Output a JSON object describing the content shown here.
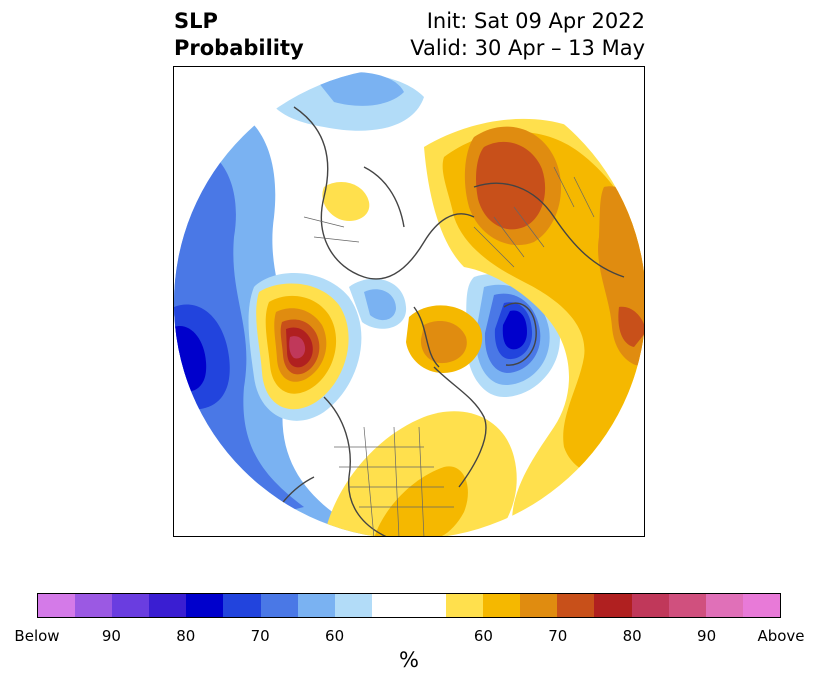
{
  "title": {
    "left": "SLP\nProbability",
    "right": "Init: Sat 09 Apr 2022\nValid: 30 Apr – 13 May"
  },
  "colorbar": {
    "colors": [
      "#d47ae8",
      "#9b59e3",
      "#6a3de0",
      "#3a1ed2",
      "#0000cc",
      "#2244dd",
      "#4a78e6",
      "#7ab2f2",
      "#b2dcf8",
      "#ffffff",
      "#ffffff",
      "#ffe04d",
      "#f5b800",
      "#e08c10",
      "#c8501a",
      "#b02020",
      "#c0385a",
      "#d0507e",
      "#e070b8",
      "#e87ad8"
    ],
    "ticks": [
      "Below",
      "90",
      "80",
      "70",
      "60",
      "60",
      "70",
      "80",
      "90",
      "Above"
    ],
    "unit": "%"
  }
}
